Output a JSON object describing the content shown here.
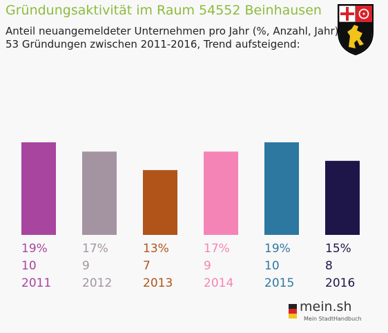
{
  "header": {
    "title": "Gründungsaktivität im Raum 54552 Beinhausen",
    "subtitle_line1": "Anteil neuangemeldeter Unternehmen pro Jahr (%, Anzahl, Jahr)",
    "subtitle_line2": "53 Gründungen zwischen 2011-2016, Trend aufsteigend:"
  },
  "chart_data": {
    "type": "bar",
    "categories": [
      "2011",
      "2012",
      "2013",
      "2014",
      "2015",
      "2016"
    ],
    "percent_labels": [
      "19%",
      "17%",
      "13%",
      "17%",
      "19%",
      "15%"
    ],
    "values": [
      10,
      9,
      7,
      9,
      10,
      8
    ],
    "colors": [
      "#a8459f",
      "#a494a1",
      "#b0541a",
      "#f584b6",
      "#2d78a0",
      "#1e1648"
    ],
    "title": "",
    "xlabel": "",
    "ylabel": "",
    "ylim": [
      0,
      10
    ],
    "grid": false,
    "legend": "none"
  },
  "crest": {
    "name": "rhineland-palatinate-coat-of-arms-icon"
  },
  "logo": {
    "main": "mein.sh",
    "sub": "Mein StadtHandbuch"
  }
}
